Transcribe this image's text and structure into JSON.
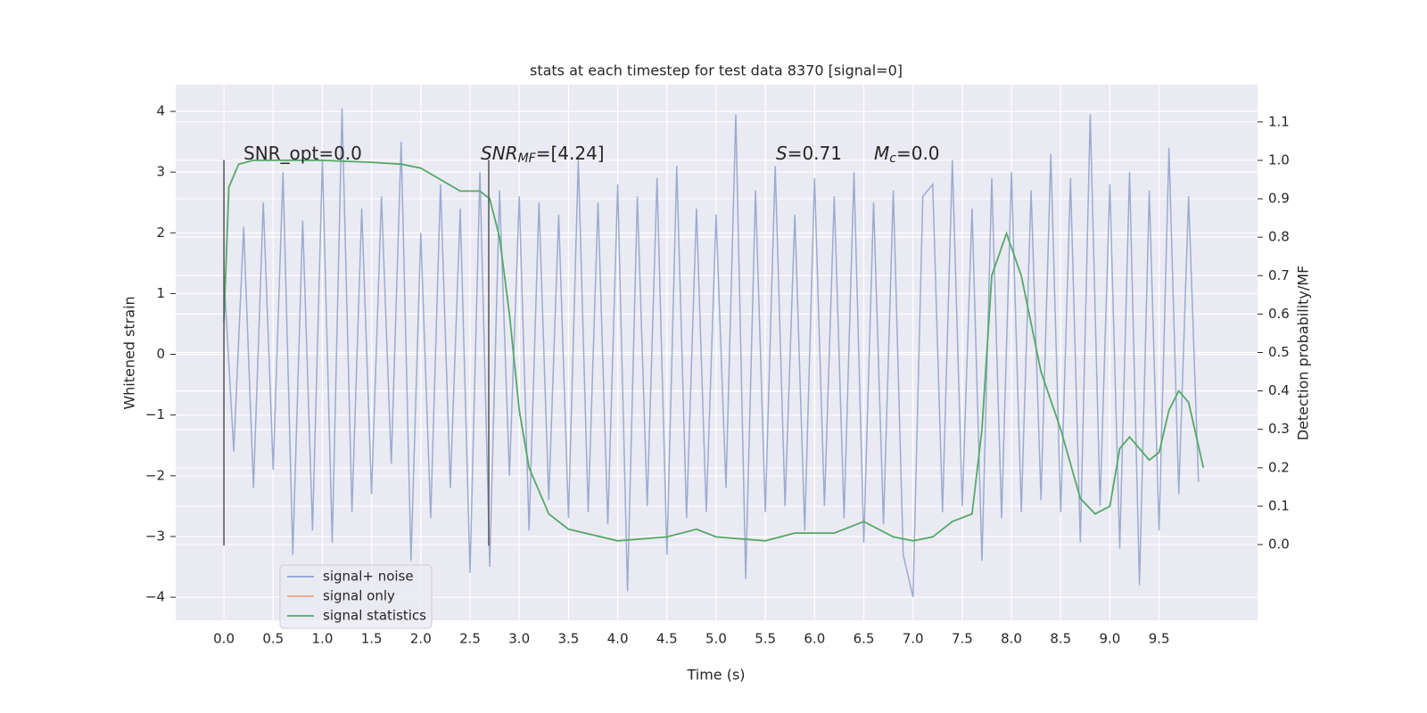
{
  "chart_data": {
    "type": "line",
    "title": "stats at each timestep for test data 8370 [signal=0]",
    "xlabel": "Time (s)",
    "ylabel": "Whitened strain",
    "y2label": "Detection probability/MF",
    "xlim": [
      -0.49,
      10.5
    ],
    "ylim": [
      -4.38,
      4.44
    ],
    "y2lim": [
      -0.197,
      1.197
    ],
    "xticks": [
      {
        "value": 0,
        "label": "0.0"
      },
      0.5,
      {
        "value": 1,
        "label": "1.0"
      },
      1.5,
      {
        "value": 2,
        "label": "2.0"
      },
      2.5,
      {
        "value": 3,
        "label": "3.0"
      },
      3.5,
      {
        "value": 4,
        "label": "4.0"
      },
      4.5,
      {
        "value": 5,
        "label": "5.0"
      },
      5.5,
      {
        "value": 6,
        "label": "6.0"
      },
      6.5,
      {
        "value": 7,
        "label": "7.0"
      },
      7.5,
      {
        "value": 8,
        "label": "8.0"
      },
      8.5,
      {
        "value": 9,
        "label": "9.0"
      },
      9.5
    ],
    "yticks": [
      {
        "value": -4,
        "label": "−4"
      },
      {
        "value": -3,
        "label": "−3"
      },
      {
        "value": -2,
        "label": "−2"
      },
      {
        "value": -1,
        "label": "−1"
      },
      0,
      1,
      2,
      3,
      4
    ],
    "y2ticks": [
      {
        "value": 0,
        "label": "0.0"
      },
      0.1,
      0.2,
      0.3,
      0.4,
      0.5,
      0.6,
      0.7,
      0.8,
      0.9,
      {
        "value": 1,
        "label": "1.0"
      },
      1.1
    ],
    "grid": true,
    "legend": "lower left",
    "series": [
      {
        "name": "signal+ noise",
        "color": "#8da0cb",
        "x": [
          0.0,
          0.1,
          0.2,
          0.3,
          0.4,
          0.5,
          0.6,
          0.7,
          0.8,
          0.9,
          1.0,
          1.1,
          1.2,
          1.3,
          1.4,
          1.5,
          1.6,
          1.7,
          1.8,
          1.9,
          2.0,
          2.1,
          2.2,
          2.3,
          2.4,
          2.5,
          2.6,
          2.7,
          2.8,
          2.9,
          3.0,
          3.1,
          3.2,
          3.3,
          3.4,
          3.5,
          3.6,
          3.7,
          3.8,
          3.9,
          4.0,
          4.1,
          4.2,
          4.3,
          4.4,
          4.5,
          4.6,
          4.7,
          4.8,
          4.9,
          5.0,
          5.1,
          5.2,
          5.3,
          5.4,
          5.5,
          5.6,
          5.7,
          5.8,
          5.9,
          6.0,
          6.1,
          6.2,
          6.3,
          6.4,
          6.5,
          6.6,
          6.7,
          6.8,
          6.9,
          7.0,
          7.1,
          7.2,
          7.3,
          7.4,
          7.5,
          7.6,
          7.7,
          7.8,
          7.9,
          8.0,
          8.1,
          8.2,
          8.3,
          8.4,
          8.5,
          8.6,
          8.7,
          8.8,
          8.9,
          9.0,
          9.1,
          9.2,
          9.3,
          9.4,
          9.5,
          9.6,
          9.7,
          9.8,
          9.9
        ],
        "values": [
          1.3,
          -1.6,
          2.1,
          -2.2,
          2.5,
          -1.9,
          3.0,
          -3.3,
          2.2,
          -2.9,
          3.2,
          -3.1,
          4.05,
          -2.6,
          2.4,
          -2.3,
          2.6,
          -1.8,
          3.5,
          -3.4,
          2.0,
          -2.7,
          2.8,
          -2.2,
          2.4,
          -3.6,
          3.0,
          -3.5,
          2.7,
          -2.0,
          2.6,
          -2.9,
          2.5,
          -2.4,
          2.3,
          -2.7,
          3.2,
          -2.6,
          2.5,
          -2.8,
          2.8,
          -3.9,
          2.6,
          -2.5,
          2.9,
          -3.3,
          3.1,
          -2.7,
          2.4,
          -2.6,
          2.3,
          -2.2,
          3.95,
          -3.7,
          2.7,
          -2.6,
          3.1,
          -2.5,
          2.3,
          -2.9,
          2.9,
          -2.5,
          2.6,
          -2.7,
          3.0,
          -3.1,
          2.5,
          -2.8,
          2.7,
          -3.3,
          -4.0,
          2.6,
          2.8,
          -2.6,
          3.2,
          -2.5,
          2.4,
          -3.4,
          2.9,
          -2.7,
          3.0,
          -2.6,
          2.7,
          -2.4,
          3.3,
          -2.6,
          2.9,
          -3.1,
          3.95,
          -2.5,
          2.8,
          -3.2,
          3.0,
          -3.8,
          2.7,
          -2.9,
          3.4,
          -2.3,
          2.6,
          -2.1
        ]
      },
      {
        "name": "signal only",
        "color": "#e5a383"
      },
      {
        "name": "signal statistics",
        "color": "#55a868",
        "axis": "y2",
        "x": [
          0.0,
          0.05,
          0.15,
          0.3,
          1.0,
          1.5,
          1.8,
          2.0,
          2.2,
          2.4,
          2.6,
          2.7,
          2.8,
          2.9,
          3.0,
          3.1,
          3.3,
          3.5,
          4.0,
          4.5,
          4.8,
          5.0,
          5.5,
          5.8,
          6.2,
          6.5,
          6.8,
          7.0,
          7.2,
          7.4,
          7.6,
          7.7,
          7.8,
          7.95,
          8.1,
          8.3,
          8.5,
          8.7,
          8.85,
          9.0,
          9.1,
          9.2,
          9.4,
          9.5,
          9.6,
          9.7,
          9.8,
          9.95
        ],
        "values": [
          0.58,
          0.93,
          0.99,
          1.0,
          1.0,
          0.995,
          0.99,
          0.98,
          0.95,
          0.92,
          0.92,
          0.9,
          0.8,
          0.6,
          0.35,
          0.2,
          0.08,
          0.04,
          0.01,
          0.02,
          0.04,
          0.02,
          0.01,
          0.03,
          0.03,
          0.06,
          0.02,
          0.01,
          0.02,
          0.06,
          0.08,
          0.3,
          0.7,
          0.81,
          0.7,
          0.45,
          0.3,
          0.12,
          0.08,
          0.1,
          0.25,
          0.28,
          0.22,
          0.24,
          0.35,
          0.4,
          0.37,
          0.2
        ]
      }
    ],
    "vlines": [
      {
        "x": 0,
        "ymin": -3.15,
        "ymax": 3.2
      },
      {
        "x": 2.69,
        "ymin": -3.15,
        "ymax": 3.2
      }
    ],
    "annotations": [
      {
        "parts": [
          {
            "text": "SNR_opt=0.0"
          }
        ]
      },
      {
        "parts": [
          {
            "text": "SNR",
            "italic": true
          },
          {
            "text": "MF",
            "italic": true,
            "sub": true
          },
          {
            "text": "=[4.24]"
          }
        ]
      },
      {
        "parts": [
          {
            "text": "S",
            "italic": true
          },
          {
            "text": "=0.71"
          }
        ]
      },
      {
        "parts": [
          {
            "text": "M",
            "italic": true
          },
          {
            "text": "c",
            "italic": true,
            "sub": true
          },
          {
            "text": "=0.0"
          }
        ]
      }
    ]
  }
}
